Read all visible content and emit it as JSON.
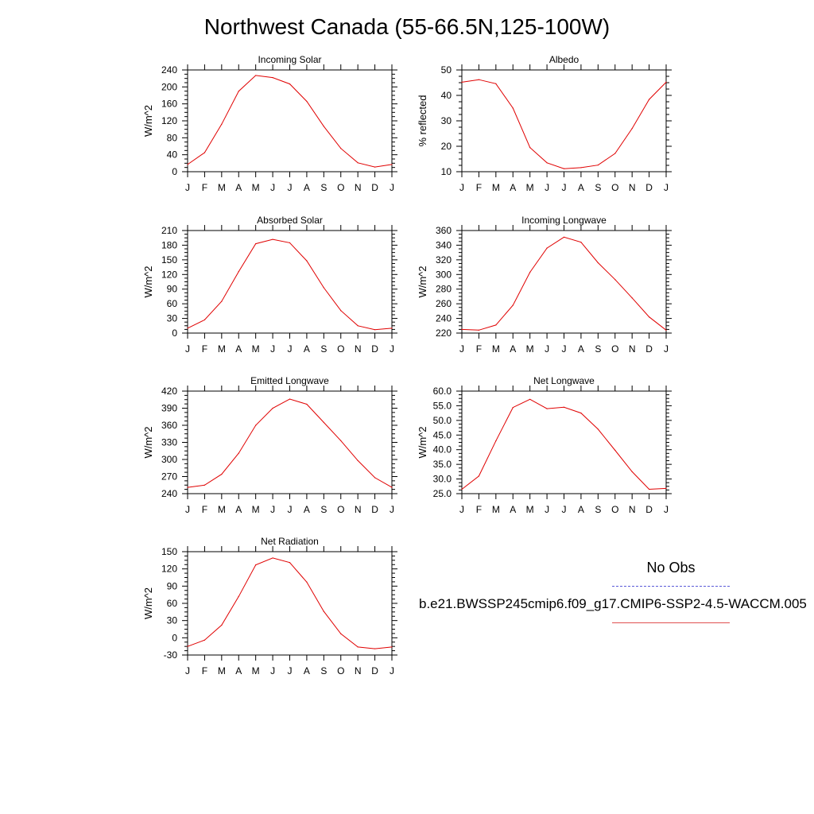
{
  "title": "Northwest Canada (55-66.5N,125-100W)",
  "months": [
    "J",
    "F",
    "M",
    "A",
    "M",
    "J",
    "J",
    "A",
    "S",
    "O",
    "N",
    "D",
    "J"
  ],
  "colors": {
    "model_line": "#e00000",
    "obs_line": "#4a4ae0",
    "axis": "#000000"
  },
  "legend": {
    "obs_label": "No Obs",
    "case_label": "b.e21.BWSSP245cmip6.f09_g17.CMIP6-SSP2-4.5-WACCM.005"
  },
  "chart_data": [
    {
      "type": "line",
      "title": "Incoming Solar",
      "ylabel": "W/m^2",
      "ylim": [
        0,
        240
      ],
      "yticks": [
        "0",
        "40",
        "80",
        "120",
        "160",
        "200",
        "240"
      ],
      "values": [
        17,
        45,
        112,
        190,
        227,
        222,
        207,
        166,
        107,
        55,
        21,
        11,
        17
      ]
    },
    {
      "type": "line",
      "title": "Albedo",
      "ylabel": "% reflected",
      "ylim": [
        10,
        50
      ],
      "yticks": [
        "10",
        "20",
        "30",
        "40",
        "50"
      ],
      "values": [
        45.2,
        46.2,
        44.6,
        35,
        19.5,
        13.5,
        11.2,
        11.6,
        12.6,
        17.2,
        27,
        38.4,
        45.2
      ]
    },
    {
      "type": "line",
      "title": "Absorbed Solar",
      "ylabel": "W/m^2",
      "ylim": [
        0,
        210
      ],
      "yticks": [
        "0",
        "30",
        "60",
        "90",
        "120",
        "150",
        "180",
        "210"
      ],
      "values": [
        10,
        27,
        65,
        126,
        183,
        192,
        185,
        148,
        93,
        46,
        15,
        7,
        10
      ]
    },
    {
      "type": "line",
      "title": "Incoming Longwave",
      "ylabel": "W/m^2",
      "ylim": [
        220,
        360
      ],
      "yticks": [
        "220",
        "240",
        "260",
        "280",
        "300",
        "320",
        "340",
        "360"
      ],
      "values": [
        225,
        224,
        231,
        258,
        303,
        336,
        351,
        344,
        316,
        293,
        268,
        242,
        224
      ]
    },
    {
      "type": "line",
      "title": "Emitted Longwave",
      "ylabel": "W/m^2",
      "ylim": [
        240,
        420
      ],
      "yticks": [
        "240",
        "270",
        "300",
        "330",
        "360",
        "390",
        "420"
      ],
      "values": [
        251,
        255,
        274,
        311,
        360,
        390,
        406,
        397,
        365,
        333,
        298,
        268,
        251
      ]
    },
    {
      "type": "line",
      "title": "Net Longwave",
      "ylabel": "W/m^2",
      "ylim": [
        25,
        60
      ],
      "yticks": [
        "25.0",
        "30.0",
        "35.0",
        "40.0",
        "45.0",
        "50.0",
        "55.0",
        "60.0"
      ],
      "values": [
        26.5,
        31,
        43,
        54.4,
        57.2,
        54,
        54.5,
        52.5,
        47,
        39.8,
        32.5,
        26.5,
        26.8
      ]
    },
    {
      "type": "line",
      "title": "Net Radiation",
      "ylabel": "W/m^2",
      "ylim": [
        -30,
        150
      ],
      "yticks": [
        "-30",
        "0",
        "30",
        "60",
        "90",
        "120",
        "150"
      ],
      "values": [
        -15,
        -4,
        22,
        72,
        127,
        139,
        131,
        97,
        46,
        7,
        -16,
        -19,
        -16
      ]
    }
  ]
}
